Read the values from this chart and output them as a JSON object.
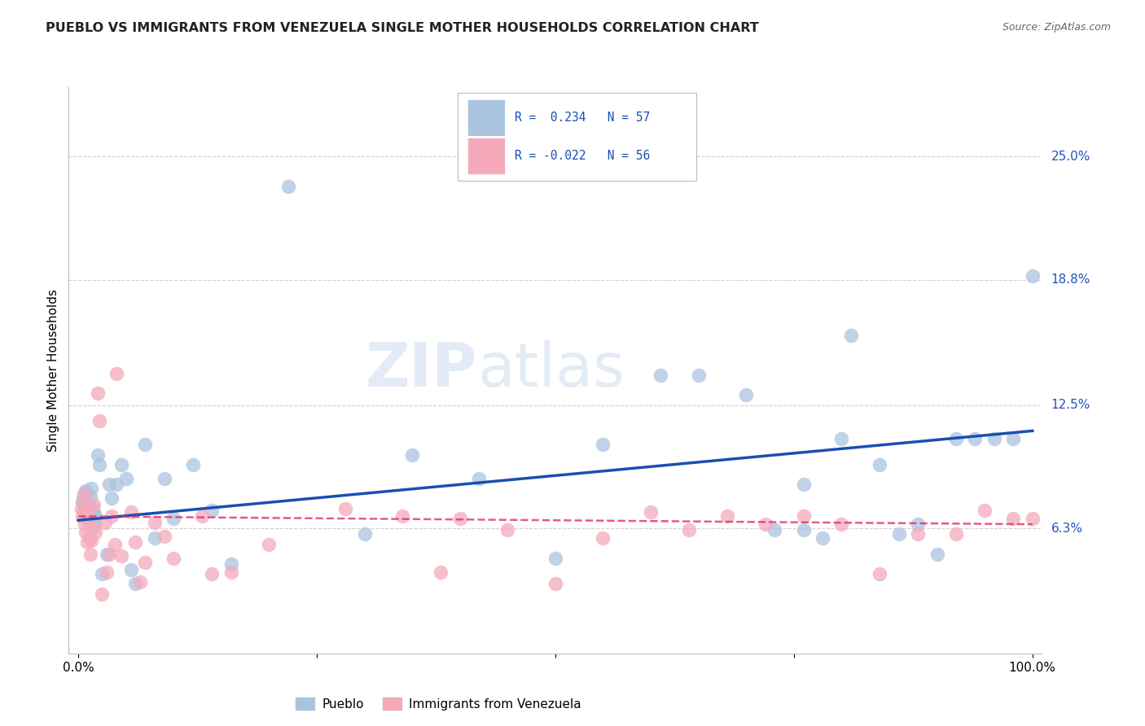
{
  "title": "PUEBLO VS IMMIGRANTS FROM VENEZUELA SINGLE MOTHER HOUSEHOLDS CORRELATION CHART",
  "source": "Source: ZipAtlas.com",
  "ylabel": "Single Mother Households",
  "watermark": "ZIPatlas",
  "xlim": [
    -0.01,
    1.01
  ],
  "ylim": [
    0.0,
    0.285
  ],
  "ytick_positions": [
    0.063,
    0.125,
    0.188,
    0.25
  ],
  "yticklabels": [
    "6.3%",
    "12.5%",
    "18.8%",
    "25.0%"
  ],
  "pueblo_color": "#aac4e0",
  "venezuela_color": "#f4aabb",
  "pueblo_line_color": "#1a4fb0",
  "venezuela_line_color": "#e03070",
  "background_color": "#ffffff",
  "grid_color": "#cccccc",
  "pueblo_x": [
    0.004,
    0.005,
    0.006,
    0.007,
    0.008,
    0.009,
    0.01,
    0.011,
    0.012,
    0.013,
    0.014,
    0.015,
    0.016,
    0.017,
    0.018,
    0.02,
    0.022,
    0.025,
    0.03,
    0.032,
    0.035,
    0.04,
    0.045,
    0.05,
    0.055,
    0.06,
    0.07,
    0.08,
    0.09,
    0.1,
    0.12,
    0.14,
    0.16,
    0.22,
    0.3,
    0.35,
    0.42,
    0.5,
    0.55,
    0.61,
    0.65,
    0.7,
    0.73,
    0.76,
    0.78,
    0.81,
    0.84,
    0.86,
    0.88,
    0.9,
    0.92,
    0.94,
    0.96,
    0.98,
    1.0,
    0.76,
    0.8
  ],
  "pueblo_y": [
    0.076,
    0.078,
    0.072,
    0.08,
    0.082,
    0.076,
    0.068,
    0.068,
    0.074,
    0.079,
    0.083,
    0.073,
    0.071,
    0.065,
    0.069,
    0.1,
    0.095,
    0.04,
    0.05,
    0.085,
    0.078,
    0.085,
    0.095,
    0.088,
    0.042,
    0.035,
    0.105,
    0.058,
    0.088,
    0.068,
    0.095,
    0.072,
    0.045,
    0.235,
    0.06,
    0.1,
    0.088,
    0.048,
    0.105,
    0.14,
    0.14,
    0.13,
    0.062,
    0.062,
    0.058,
    0.16,
    0.095,
    0.06,
    0.065,
    0.05,
    0.108,
    0.108,
    0.108,
    0.108,
    0.19,
    0.085,
    0.108
  ],
  "venezuela_x": [
    0.003,
    0.004,
    0.005,
    0.006,
    0.007,
    0.007,
    0.008,
    0.009,
    0.01,
    0.011,
    0.012,
    0.013,
    0.014,
    0.015,
    0.016,
    0.018,
    0.02,
    0.022,
    0.025,
    0.028,
    0.03,
    0.032,
    0.035,
    0.038,
    0.04,
    0.045,
    0.055,
    0.06,
    0.065,
    0.07,
    0.08,
    0.09,
    0.1,
    0.14,
    0.2,
    0.28,
    0.38,
    0.6,
    0.64,
    0.68,
    0.72,
    0.76,
    0.8,
    0.84,
    0.88,
    0.92,
    0.95,
    0.98,
    0.13,
    0.16,
    0.34,
    0.4,
    0.45,
    0.5,
    0.55,
    1.0
  ],
  "venezuela_y": [
    0.073,
    0.069,
    0.076,
    0.08,
    0.065,
    0.071,
    0.061,
    0.056,
    0.067,
    0.073,
    0.058,
    0.05,
    0.057,
    0.063,
    0.075,
    0.061,
    0.131,
    0.117,
    0.03,
    0.066,
    0.041,
    0.05,
    0.069,
    0.055,
    0.141,
    0.049,
    0.071,
    0.056,
    0.036,
    0.046,
    0.066,
    0.059,
    0.048,
    0.04,
    0.055,
    0.073,
    0.041,
    0.071,
    0.062,
    0.069,
    0.065,
    0.069,
    0.065,
    0.04,
    0.06,
    0.06,
    0.072,
    0.068,
    0.069,
    0.041,
    0.069,
    0.068,
    0.062,
    0.035,
    0.058,
    0.068
  ],
  "pueblo_line_x": [
    0.0,
    1.0
  ],
  "pueblo_line_y": [
    0.067,
    0.112
  ],
  "venezuela_line_x": [
    0.0,
    1.0
  ],
  "venezuela_line_y": [
    0.069,
    0.065
  ]
}
